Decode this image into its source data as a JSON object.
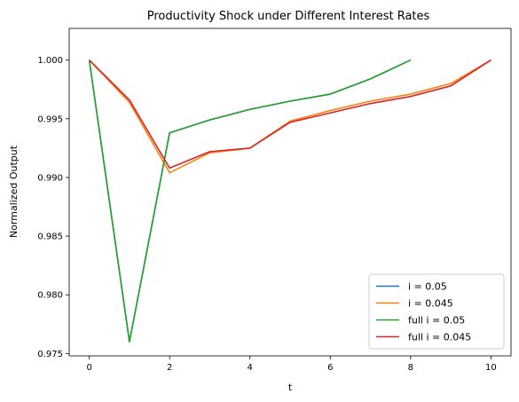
{
  "chart_data": {
    "type": "line",
    "title": "Productivity Shock under Different Interest Rates",
    "xlabel": "t",
    "ylabel": "Normalized Output",
    "xlim": [
      -0.5,
      10.5
    ],
    "ylim": [
      0.9748,
      1.0027
    ],
    "x_ticks": [
      "0",
      "2",
      "4",
      "6",
      "8",
      "10"
    ],
    "y_ticks": [
      "0.975",
      "0.980",
      "0.985",
      "0.990",
      "0.995",
      "1.000"
    ],
    "grid": false,
    "legend_position": "lower-right",
    "series": [
      {
        "name": "i = 0.05",
        "color": "#1f77b4",
        "x": [
          0,
          1,
          2,
          3,
          4,
          5,
          6,
          7,
          8
        ],
        "values": [
          1.0,
          0.976,
          0.9938,
          0.9949,
          0.9958,
          0.9965,
          0.9971,
          0.9984,
          1.0
        ]
      },
      {
        "name": "i = 0.045",
        "color": "#ff7f0e",
        "x": [
          0,
          1,
          2,
          3,
          4,
          5,
          6,
          7,
          8,
          9,
          10
        ],
        "values": [
          1.0,
          0.9964,
          0.9904,
          0.9921,
          0.9925,
          0.9948,
          0.9957,
          0.9965,
          0.9971,
          0.998,
          1.0
        ]
      },
      {
        "name": "full i = 0.05",
        "color": "#2ca02c",
        "x": [
          0,
          1,
          2,
          3,
          4,
          5,
          6,
          7,
          8
        ],
        "values": [
          1.0,
          0.976,
          0.9938,
          0.9949,
          0.9958,
          0.9965,
          0.9971,
          0.9984,
          1.0
        ]
      },
      {
        "name": "full i = 0.045",
        "color": "#d62728",
        "x": [
          0,
          1,
          2,
          3,
          4,
          5,
          6,
          7,
          8,
          9,
          10
        ],
        "values": [
          1.0,
          0.9966,
          0.9908,
          0.9922,
          0.9925,
          0.9947,
          0.9955,
          0.9963,
          0.9969,
          0.9978,
          1.0
        ]
      }
    ]
  }
}
